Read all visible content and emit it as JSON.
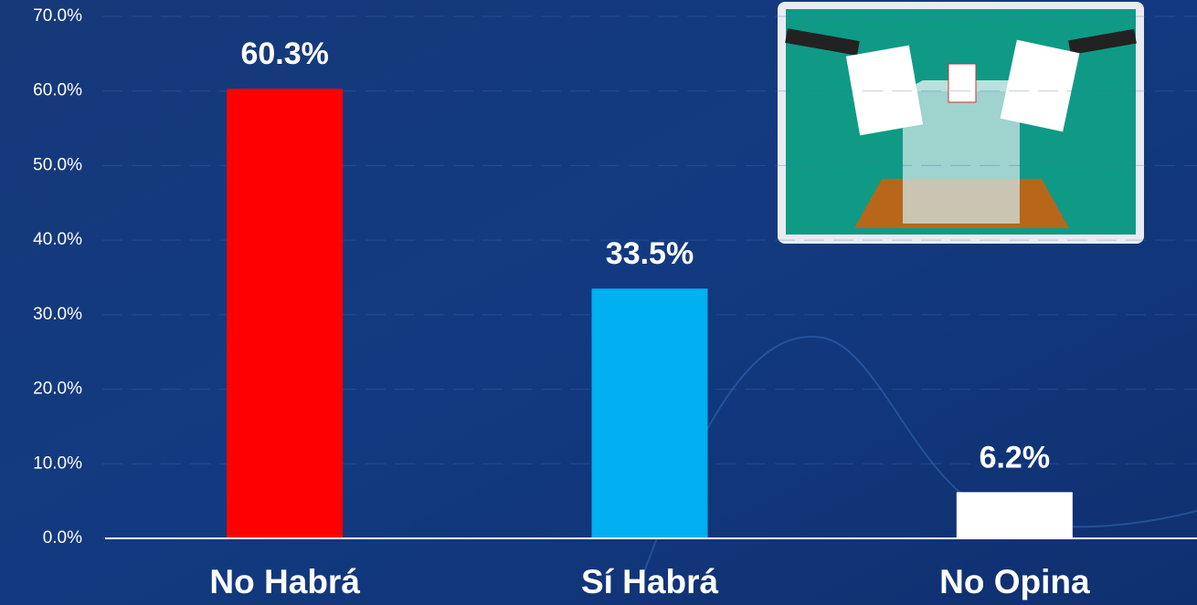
{
  "chart_data": {
    "type": "bar",
    "categories": [
      "No Habrá",
      "Sí Habrá",
      "No Opina"
    ],
    "values": [
      60.3,
      33.5,
      6.2
    ],
    "value_labels": [
      "60.3%",
      "33.5%",
      "6.2%"
    ],
    "colors": [
      "#ff0000",
      "#00b0f0",
      "#ffffff"
    ],
    "ylim": [
      0,
      70
    ],
    "yticks": [
      {
        "value": 0,
        "label": "0.0%"
      },
      {
        "value": 10,
        "label": "10.0%"
      },
      {
        "value": 20,
        "label": "20.0%"
      },
      {
        "value": 30,
        "label": "30.0%"
      },
      {
        "value": 40,
        "label": "40.0%"
      },
      {
        "value": 50,
        "label": "50.0%"
      },
      {
        "value": 60,
        "label": "60.0%"
      },
      {
        "value": 70,
        "label": "70.0%"
      }
    ],
    "grid": true
  }
}
